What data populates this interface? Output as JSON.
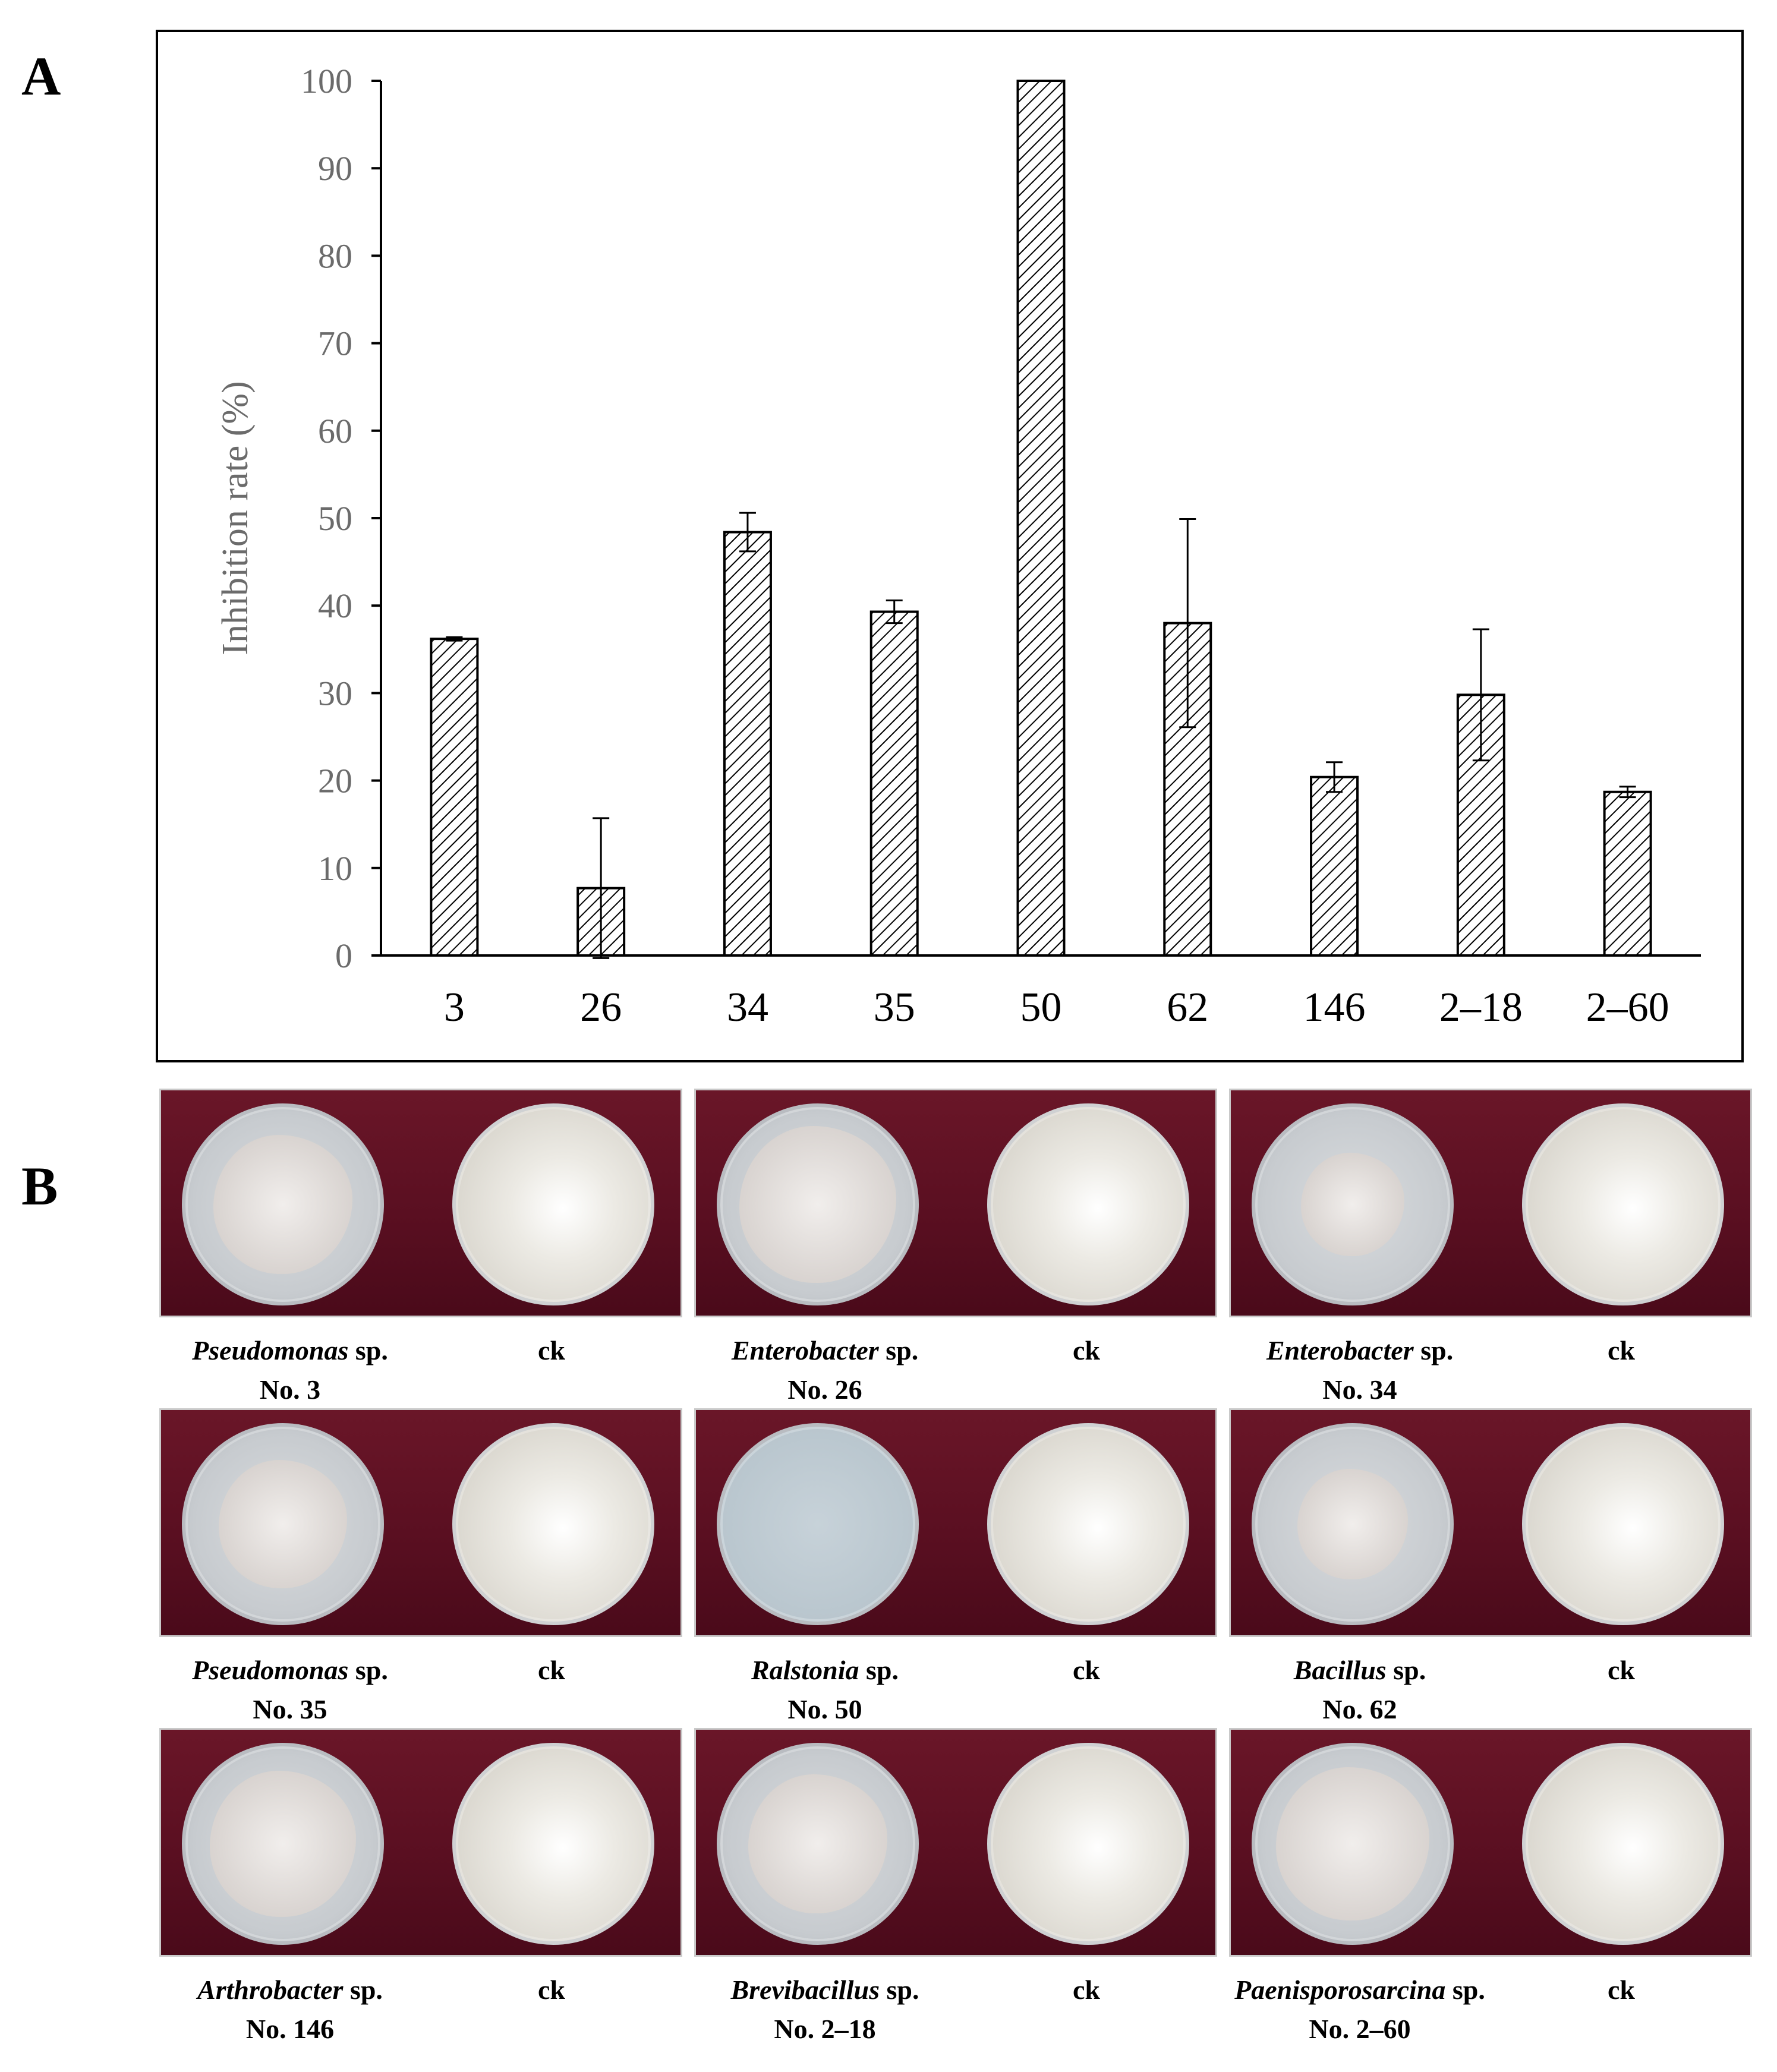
{
  "panels": {
    "a_label": "A",
    "b_label": "B"
  },
  "chart_data": {
    "type": "bar",
    "title": "",
    "xlabel": "",
    "ylabel": "Inhibition  rate (%)",
    "ylim": [
      0,
      100
    ],
    "yticks": [
      "0",
      "10",
      "20",
      "30",
      "40",
      "50",
      "60",
      "70",
      "80",
      "90",
      "100"
    ],
    "categories": [
      "3",
      "26",
      "34",
      "35",
      "50",
      "62",
      "146",
      "2–18",
      "2–60"
    ],
    "values": [
      36.2,
      7.7,
      48.4,
      39.3,
      100,
      38.0,
      20.4,
      29.8,
      18.7
    ],
    "error": [
      0.2,
      8.0,
      2.2,
      1.3,
      0,
      11.9,
      1.7,
      7.5,
      0.6
    ],
    "bar_fill": "diagonal-hatch",
    "grid": false,
    "legend": "none"
  },
  "plates": [
    {
      "genus": "Pseudomonas",
      "suffix": " sp.",
      "number": "No. 3",
      "control": "ck",
      "colony_size": 0.78
    },
    {
      "genus": "Enterobacter",
      "suffix": " sp.",
      "number": "No. 26",
      "control": "ck",
      "colony_size": 0.88
    },
    {
      "genus": "Enterobacter",
      "suffix": " sp.",
      "number": "No. 34",
      "control": "ck",
      "colony_size": 0.58
    },
    {
      "genus": "Pseudomonas",
      "suffix": " sp.",
      "number": "No. 35",
      "control": "ck",
      "colony_size": 0.72
    },
    {
      "genus": "Ralstonia",
      "suffix": " sp.",
      "number": "No. 50",
      "control": "ck",
      "colony_size": 0.0
    },
    {
      "genus": "Bacillus",
      "suffix": " sp.",
      "number": "No. 62",
      "control": "ck",
      "colony_size": 0.62
    },
    {
      "genus": "Arthrobacter",
      "suffix": " sp.",
      "number": "No. 146",
      "control": "ck",
      "colony_size": 0.82
    },
    {
      "genus": "Brevibacillus",
      "suffix": " sp.",
      "number": "No. 2–18",
      "control": "ck",
      "colony_size": 0.78
    },
    {
      "genus": "Paenisporosarcina",
      "suffix": " sp.",
      "number": "No. 2–60",
      "control": "ck",
      "colony_size": 0.86
    }
  ],
  "colors": {
    "background_cloth": "#5a0f21",
    "axis": "#000000",
    "tick_text": "#6b6b6b"
  }
}
